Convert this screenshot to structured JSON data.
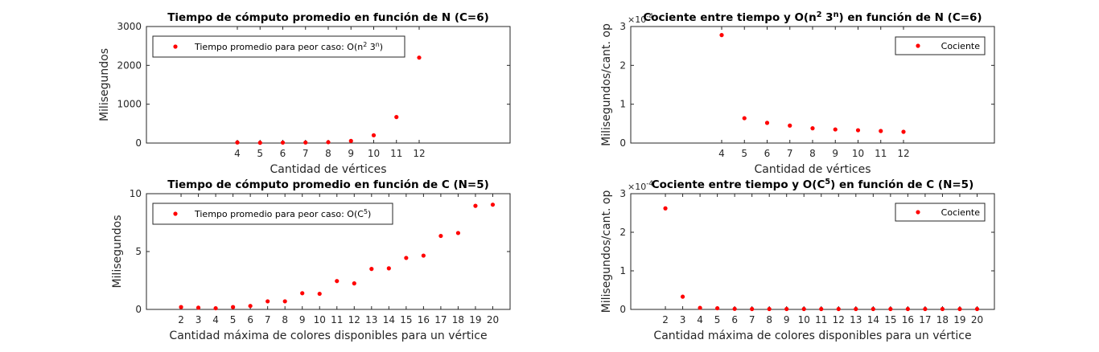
{
  "chart_data": [
    {
      "type": "scatter",
      "title": "Tiempo de cómputo promedio en función de N (C=6)",
      "title_sup": [
        "Tiempo de cómputo promedio en función de N (C=6)"
      ],
      "xlabel": "Cantidad de vértices",
      "ylabel": "Milisegundos",
      "xlim": [
        0,
        16
      ],
      "ylim": [
        0,
        3000
      ],
      "y_ticks": [
        0,
        1000,
        2000,
        3000
      ],
      "y_exponent": "",
      "grid": false,
      "legend_position": "top-left",
      "legend_parts": [
        "Tiempo promedio para peor caso: O(n",
        "2",
        " 3",
        "n",
        ")"
      ],
      "series": [
        {
          "name": "Tiempo promedio para peor caso: O(n^2 3^n)",
          "color": "#ff0000",
          "x": [
            4,
            5,
            6,
            7,
            8,
            9,
            10,
            11,
            12
          ],
          "y": [
            15,
            8,
            12,
            14,
            22,
            55,
            200,
            670,
            2200
          ]
        }
      ]
    },
    {
      "type": "scatter",
      "title": "Cociente entre tiempo y O(n^2 3^n) en función de N (C=6)",
      "xlabel": "Cantidad de vértices",
      "ylabel": "Milisegundos/cant. op",
      "xlim": [
        0,
        16
      ],
      "ylim": [
        0,
        3
      ],
      "y_ticks": [
        0,
        1,
        2,
        3
      ],
      "y_exponent": "-4",
      "grid": false,
      "legend_position": "top-right",
      "legend_parts": [
        "Cociente"
      ],
      "series": [
        {
          "name": "Cociente",
          "color": "#ff0000",
          "x": [
            4,
            5,
            6,
            7,
            8,
            9,
            10,
            11,
            12
          ],
          "y": [
            2.78,
            0.64,
            0.52,
            0.45,
            0.38,
            0.35,
            0.33,
            0.31,
            0.29
          ]
        }
      ]
    },
    {
      "type": "scatter",
      "title": "Tiempo de cómputo promedio en función de C (N=5)",
      "xlabel": "Cantidad máxima de colores disponibles para un vértice",
      "ylabel": "Milisegundos",
      "xlim": [
        0,
        21
      ],
      "ylim": [
        0,
        10
      ],
      "y_ticks": [
        0,
        5,
        10
      ],
      "y_exponent": "",
      "grid": false,
      "legend_position": "top-left",
      "legend_parts": [
        "Tiempo promedio para peor caso: O(C",
        "5",
        ")"
      ],
      "series": [
        {
          "name": "Tiempo promedio para peor caso: O(C^5)",
          "color": "#ff0000",
          "x": [
            2,
            3,
            4,
            5,
            6,
            7,
            8,
            9,
            10,
            11,
            12,
            13,
            14,
            15,
            16,
            17,
            18,
            19,
            20
          ],
          "y": [
            0.2,
            0.15,
            0.1,
            0.2,
            0.3,
            0.7,
            0.7,
            1.4,
            1.35,
            2.45,
            2.25,
            3.5,
            3.55,
            4.45,
            4.65,
            6.35,
            6.6,
            8.95,
            9.05
          ]
        }
      ]
    },
    {
      "type": "scatter",
      "title": "Cociente entre tiempo y O(C^5) en función de C (N=5)",
      "xlabel": "Cantidad máxima de colores disponibles para un vértice",
      "ylabel": "Milisegundos/cant. op",
      "xlim": [
        0,
        21
      ],
      "ylim": [
        0,
        3
      ],
      "y_ticks": [
        0,
        1,
        2,
        3
      ],
      "y_exponent": "-4",
      "grid": false,
      "legend_position": "top-right",
      "legend_parts": [
        "Cociente"
      ],
      "series": [
        {
          "name": "Cociente",
          "color": "#ff0000",
          "x": [
            2,
            3,
            4,
            5,
            6,
            7,
            8,
            9,
            10,
            11,
            12,
            13,
            14,
            15,
            16,
            17,
            18,
            19,
            20
          ],
          "y": [
            2.62,
            0.33,
            0.04,
            0.03,
            0.015,
            0.01,
            0.01,
            0.01,
            0.01,
            0.01,
            0.01,
            0.01,
            0.01,
            0.01,
            0.01,
            0.01,
            0.01,
            0.01,
            0.01
          ]
        }
      ]
    }
  ],
  "titles": [
    [
      "Tiempo de cómputo promedio en función de N (C=6)"
    ],
    [
      "Cociente entre tiempo y O(n",
      "2",
      " 3",
      "n",
      ") en función de N (C=6)"
    ],
    [
      "Tiempo de cómputo promedio en función de C (N=5)"
    ],
    [
      "Cociente entre tiempo y O(C",
      "5",
      ") en función de C (N=5)"
    ]
  ],
  "exponent_base": "×10"
}
